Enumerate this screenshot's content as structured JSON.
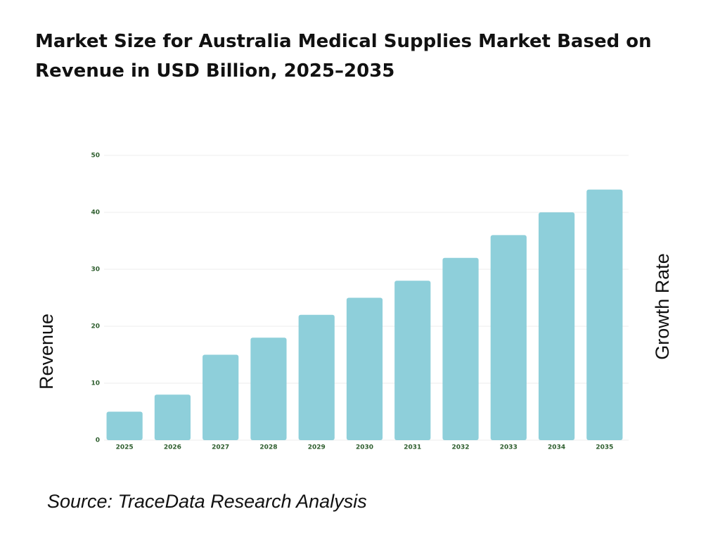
{
  "chart_data": {
    "type": "bar",
    "title": "Market Size for Australia Medical Supplies Market Based on Revenue in USD Billion, 2025–2035",
    "categories": [
      "2025",
      "2026",
      "2027",
      "2028",
      "2029",
      "2030",
      "2031",
      "2032",
      "2033",
      "2034",
      "2035"
    ],
    "values": [
      5,
      8,
      15,
      18,
      22,
      25,
      28,
      32,
      36,
      40,
      44
    ],
    "color": "#8ecfda",
    "ylim": [
      0,
      50
    ],
    "yticks": [
      0,
      10,
      20,
      30,
      40,
      50
    ],
    "grid": true,
    "ylabel": "Revenue",
    "y2label": "Growth Rate",
    "source": "Source: TraceData Research Analysis"
  }
}
